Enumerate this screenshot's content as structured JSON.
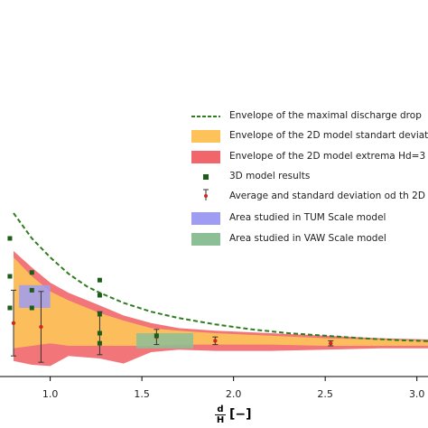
{
  "chart_data": {
    "type": "area",
    "xlabel": {
      "fraction_numerator": "d",
      "fraction_denominator": "H",
      "unit": "[−]"
    },
    "xlim": [
      0.8,
      3.1
    ],
    "ylim": [
      -0.4,
      4.0
    ],
    "x_ticks": [
      "1.0",
      "1.5",
      "2.0",
      "2.5",
      "3.0"
    ],
    "x_tick_values": [
      1.0,
      1.5,
      2.0,
      2.5,
      3.0
    ],
    "grid": false,
    "legend_position": "right",
    "series": [
      {
        "name": "Envelope of the maximal discharge drop",
        "kind": "dashed-line",
        "color": "#2e7d1f",
        "x": [
          0.8,
          0.9,
          1.0,
          1.1,
          1.2,
          1.27,
          1.4,
          1.55,
          1.7,
          1.9,
          2.1,
          2.3,
          2.5,
          2.7,
          2.9,
          3.1
        ],
        "y": [
          1.05,
          0.85,
          0.7,
          0.57,
          0.47,
          0.42,
          0.34,
          0.27,
          0.22,
          0.17,
          0.13,
          0.1,
          0.08,
          0.06,
          0.045,
          0.035
        ]
      },
      {
        "name": "Envelope of the 2D model standart deviat",
        "kind": "band",
        "color": "#fdc35a",
        "x": [
          0.8,
          0.9,
          1.0,
          1.1,
          1.27,
          1.4,
          1.55,
          1.7,
          1.9,
          2.2,
          2.5,
          2.8,
          3.1
        ],
        "upper": [
          0.7,
          0.55,
          0.43,
          0.36,
          0.26,
          0.2,
          0.14,
          0.12,
          0.1,
          0.08,
          0.06,
          0.05,
          0.04
        ],
        "lower": [
          -0.02,
          0.0,
          0.02,
          0.0,
          0.0,
          0.0,
          0.0,
          0.01,
          0.01,
          0.01,
          0.0,
          0.0,
          0.0
        ]
      },
      {
        "name": "Envelope of the 2D model extrema  Hd=3",
        "kind": "band",
        "color": "#f0666a",
        "x": [
          0.8,
          0.9,
          1.0,
          1.1,
          1.27,
          1.4,
          1.55,
          1.7,
          1.9,
          2.2,
          2.5,
          2.8,
          3.1
        ],
        "upper": [
          0.75,
          0.62,
          0.5,
          0.42,
          0.32,
          0.24,
          0.18,
          0.14,
          0.12,
          0.1,
          0.08,
          0.06,
          0.05
        ],
        "lower": [
          -0.12,
          -0.15,
          -0.16,
          -0.08,
          -0.1,
          -0.14,
          -0.05,
          -0.03,
          -0.04,
          -0.04,
          -0.03,
          -0.02,
          -0.02
        ]
      },
      {
        "name": "3D model results",
        "kind": "markers",
        "color": "#1a5e1a",
        "x": [
          0.78,
          0.78,
          0.78,
          0.9,
          0.9,
          0.9,
          1.27,
          1.27,
          1.27,
          1.27,
          1.27,
          1.58
        ],
        "y": [
          0.85,
          0.55,
          0.3,
          0.58,
          0.44,
          0.3,
          0.52,
          0.4,
          0.25,
          0.1,
          0.02,
          0.08
        ]
      },
      {
        "name": "Average and standard deviation od th 2D",
        "kind": "errorbar",
        "color": "#cc2a1f",
        "x": [
          0.8,
          0.95,
          1.27,
          1.58,
          1.9,
          2.53,
          3.08
        ],
        "mean": [
          0.18,
          0.15,
          0.1,
          0.07,
          0.04,
          0.02,
          0.01
        ],
        "std": [
          0.26,
          0.28,
          0.17,
          0.06,
          0.03,
          0.02,
          0.01
        ]
      },
      {
        "name": "Area studied in TUM Scale model",
        "kind": "rect",
        "color": "#9f9cf3",
        "x_range": [
          0.83,
          1.0
        ],
        "y_range": [
          0.3,
          0.48
        ]
      },
      {
        "name": "Area studied in VAW Scale model",
        "kind": "rect",
        "color": "#8cbf96",
        "x_range": [
          1.47,
          1.78
        ],
        "y_range": [
          -0.02,
          0.1
        ]
      }
    ]
  }
}
